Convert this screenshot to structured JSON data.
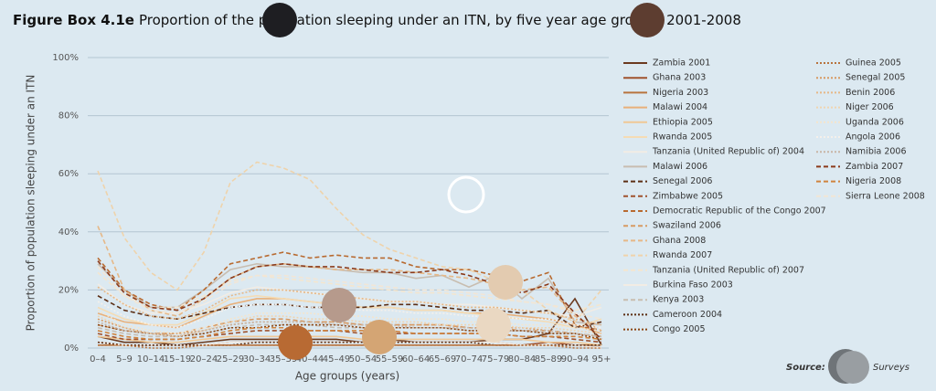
{
  "chart_data": {
    "type": "line",
    "figure_label": "Figure Box 4.1e",
    "title": "Proportion of the population sleeping under an ITN, by five year age groups, 2001-2008",
    "y_axis_label": "Proportion of population sleeping under an ITN",
    "x_axis_label": "Age groups (years)",
    "source_label": "Source:",
    "source_text": "Surveys",
    "grid": true,
    "ylim": [
      0,
      100
    ],
    "yticks": [
      {
        "value": 0,
        "label": "0%"
      },
      {
        "value": 20,
        "label": "20%"
      },
      {
        "value": 40,
        "label": "40%"
      },
      {
        "value": 60,
        "label": "60%"
      },
      {
        "value": 80,
        "label": "80%"
      },
      {
        "value": 100,
        "label": "100%"
      }
    ],
    "categories": [
      "0–4",
      "5–9",
      "10–14",
      "15–19",
      "20–24",
      "25–29",
      "30–34",
      "35–39",
      "40–44",
      "45–49",
      "50–54",
      "55–59",
      "60–64",
      "65–69",
      "70–74",
      "75–79",
      "80–84",
      "85–89",
      "90–94",
      "95+"
    ],
    "series": [
      {
        "name": "Zambia 2001",
        "color": "#6b3a1f",
        "style": "solid",
        "values": [
          4,
          2,
          2,
          1,
          2,
          3,
          3,
          3,
          3,
          3,
          2,
          3,
          2,
          2,
          2,
          3,
          3,
          5,
          17,
          1
        ]
      },
      {
        "name": "Ghana 2003",
        "color": "#a0522d",
        "style": "solid",
        "values": [
          2,
          1,
          1,
          1,
          1,
          2,
          2,
          2,
          2,
          2,
          2,
          2,
          2,
          2,
          2,
          2,
          1,
          2,
          1,
          0
        ]
      },
      {
        "name": "Nigeria 2003",
        "color": "#b8733e",
        "style": "solid",
        "values": [
          1,
          1,
          1,
          1,
          1,
          1,
          1,
          1,
          1,
          1,
          1,
          1,
          1,
          1,
          1,
          1,
          1,
          1,
          1,
          1
        ]
      },
      {
        "name": "Malawi 2004",
        "color": "#e8b07a",
        "style": "solid",
        "values": [
          12,
          9,
          8,
          7,
          11,
          15,
          17,
          17,
          16,
          15,
          14,
          14,
          13,
          13,
          12,
          12,
          11,
          10,
          8,
          5
        ]
      },
      {
        "name": "Ethiopia 2005",
        "color": "#f0c896",
        "style": "solid",
        "values": [
          4,
          3,
          2,
          2,
          3,
          4,
          4,
          4,
          4,
          4,
          3,
          3,
          3,
          3,
          3,
          3,
          3,
          2,
          2,
          1
        ]
      },
      {
        "name": "Rwanda 2005",
        "color": "#f5dcb4",
        "style": "solid",
        "values": [
          14,
          10,
          8,
          8,
          12,
          17,
          18,
          17,
          16,
          15,
          14,
          14,
          13,
          13,
          12,
          11,
          10,
          9,
          7,
          10
        ]
      },
      {
        "name": "Tanzania (United Republic of) 2004",
        "color": "#f2ece4",
        "style": "solid",
        "values": [
          22,
          15,
          12,
          12,
          15,
          19,
          21,
          20,
          19,
          18,
          17,
          16,
          16,
          15,
          15,
          14,
          13,
          12,
          11,
          14
        ]
      },
      {
        "name": "Malawi 2006",
        "color": "#c8bdb0",
        "style": "solid",
        "values": [
          29,
          20,
          14,
          14,
          20,
          27,
          29,
          28,
          28,
          27,
          26,
          26,
          24,
          25,
          21,
          25,
          17,
          24,
          9,
          8
        ]
      },
      {
        "name": "Senegal 2006",
        "color": "#5c2e14",
        "style": "dashed",
        "values": [
          18,
          13,
          11,
          10,
          12,
          14,
          15,
          15,
          14,
          14,
          14,
          15,
          15,
          14,
          13,
          13,
          12,
          13,
          7,
          9
        ]
      },
      {
        "name": "Zimbabwe 2005",
        "color": "#a0522d",
        "style": "dashed",
        "values": [
          5,
          3,
          3,
          3,
          4,
          5,
          6,
          6,
          6,
          6,
          5,
          5,
          5,
          5,
          5,
          5,
          4,
          4,
          3,
          2
        ]
      },
      {
        "name": "Democratic Republic of the Congo 2007",
        "color": "#b86a30",
        "style": "dashed",
        "values": [
          31,
          20,
          15,
          13,
          20,
          29,
          31,
          33,
          31,
          32,
          31,
          31,
          28,
          27,
          27,
          25,
          23,
          26,
          8,
          6
        ]
      },
      {
        "name": "Swaziland 2006",
        "color": "#d79a63",
        "style": "dashed",
        "values": [
          8,
          6,
          5,
          5,
          7,
          9,
          10,
          10,
          9,
          9,
          8,
          8,
          8,
          8,
          7,
          7,
          6,
          6,
          5,
          4
        ]
      },
      {
        "name": "Ghana 2008",
        "color": "#e6b887",
        "style": "dashed",
        "values": [
          42,
          20,
          13,
          11,
          17,
          24,
          28,
          29,
          28,
          27,
          27,
          27,
          26,
          25,
          24,
          22,
          20,
          21,
          11,
          6
        ]
      },
      {
        "name": "Rwanda 2007",
        "color": "#efd3ab",
        "style": "dashed",
        "values": [
          61,
          38,
          26,
          20,
          33,
          57,
          64,
          62,
          58,
          48,
          39,
          34,
          31,
          28,
          27,
          23,
          20,
          13,
          9,
          20
        ]
      },
      {
        "name": "Tanzania (United Republic of) 2007",
        "color": "#f4e6cf",
        "style": "dashed",
        "values": [
          26,
          18,
          14,
          14,
          18,
          23,
          25,
          24,
          23,
          22,
          21,
          20,
          19,
          19,
          18,
          17,
          16,
          15,
          13,
          15
        ]
      },
      {
        "name": "Burkina Faso 2003",
        "color": "#f2ece4",
        "style": "solid",
        "values": [
          2,
          1,
          1,
          1,
          1,
          2,
          2,
          2,
          2,
          2,
          2,
          2,
          2,
          2,
          2,
          2,
          1,
          1,
          1,
          0
        ]
      },
      {
        "name": "Kenya 2003",
        "color": "#c8bdb0",
        "style": "dashed",
        "values": [
          7,
          5,
          4,
          4,
          5,
          7,
          8,
          8,
          8,
          7,
          7,
          7,
          7,
          7,
          6,
          6,
          6,
          5,
          5,
          4
        ]
      },
      {
        "name": "Cameroon 2004",
        "color": "#5c2e14",
        "style": "dotted",
        "values": [
          2,
          1,
          1,
          1,
          1,
          1,
          2,
          2,
          2,
          2,
          2,
          2,
          2,
          2,
          2,
          1,
          1,
          1,
          1,
          1
        ]
      },
      {
        "name": "Congo 2005",
        "color": "#8b4513",
        "style": "dotted",
        "values": [
          8,
          6,
          5,
          4,
          5,
          7,
          7,
          8,
          8,
          8,
          7,
          7,
          7,
          7,
          6,
          6,
          6,
          5,
          5,
          3
        ]
      },
      {
        "name": "Guinea 2005",
        "color": "#b8733e",
        "style": "dotted",
        "values": [
          1,
          1,
          0,
          0,
          1,
          1,
          1,
          1,
          1,
          1,
          1,
          1,
          1,
          1,
          1,
          1,
          1,
          1,
          0,
          0
        ]
      },
      {
        "name": "Senegal 2005",
        "color": "#d79a63",
        "style": "dotted",
        "values": [
          10,
          7,
          5,
          5,
          6,
          8,
          9,
          9,
          9,
          9,
          8,
          8,
          8,
          8,
          7,
          7,
          7,
          6,
          5,
          4
        ]
      },
      {
        "name": "Benin 2006",
        "color": "#e6b887",
        "style": "dotted",
        "values": [
          21,
          15,
          11,
          10,
          13,
          18,
          20,
          20,
          19,
          18,
          17,
          16,
          16,
          15,
          14,
          14,
          13,
          12,
          10,
          8
        ]
      },
      {
        "name": "Niger 2006",
        "color": "#f0d4b0",
        "style": "dotted",
        "values": [
          11,
          7,
          5,
          4,
          6,
          9,
          11,
          11,
          10,
          10,
          9,
          9,
          9,
          8,
          8,
          8,
          7,
          7,
          6,
          5
        ]
      },
      {
        "name": "Uganda 2006",
        "color": "#f5e5cc",
        "style": "dotted",
        "values": [
          13,
          8,
          6,
          5,
          7,
          10,
          12,
          12,
          12,
          11,
          11,
          10,
          10,
          10,
          9,
          9,
          8,
          8,
          7,
          6
        ]
      },
      {
        "name": "Angola 2006",
        "color": "#f5f0ea",
        "style": "dotted",
        "values": [
          16,
          11,
          8,
          7,
          10,
          14,
          15,
          15,
          14,
          14,
          13,
          13,
          12,
          12,
          11,
          11,
          10,
          10,
          8,
          7
        ]
      },
      {
        "name": "Namibia 2006",
        "color": "#c8b5a5",
        "style": "dotted",
        "values": [
          9,
          6,
          5,
          4,
          6,
          8,
          9,
          9,
          9,
          8,
          8,
          8,
          7,
          7,
          7,
          6,
          6,
          6,
          5,
          4
        ]
      },
      {
        "name": "Zambia 2007",
        "color": "#8b3a1a",
        "style": "dashed",
        "values": [
          30,
          19,
          14,
          13,
          17,
          24,
          28,
          29,
          28,
          28,
          27,
          26,
          26,
          27,
          25,
          22,
          19,
          22,
          12,
          3
        ]
      },
      {
        "name": "Nigeria 2008",
        "color": "#d0843e",
        "style": "dashed",
        "values": [
          6,
          4,
          3,
          3,
          4,
          6,
          7,
          7,
          6,
          6,
          6,
          6,
          5,
          5,
          5,
          5,
          4,
          4,
          4,
          3
        ]
      },
      {
        "name": "Sierra Leone 2008",
        "color": "#f2e6d6",
        "style": "dashed",
        "values": [
          28,
          18,
          13,
          12,
          16,
          22,
          25,
          25,
          24,
          23,
          22,
          21,
          20,
          20,
          19,
          18,
          16,
          15,
          12,
          10
        ]
      }
    ]
  }
}
